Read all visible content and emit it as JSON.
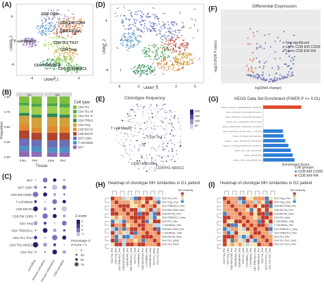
{
  "panels": {
    "A": {
      "letter": "(A)",
      "xlabel": "UMAP_1",
      "ylabel": "UMAP_2",
      "cluster_labels": [
        "GDT CD8+",
        "CD8 EM CD69",
        "CD8 EM RA",
        "T cell Mitotic",
        "CD4 Th1 Th17",
        "CD4 Treg",
        "CD4 TRBV20-1",
        "CD4 Th1 NR3C1"
      ],
      "xticks": [
        "-4",
        "0",
        "4"
      ],
      "yticks": [
        "4",
        "0",
        "-4"
      ]
    },
    "B": {
      "letter": "(B)",
      "xlabel": "Tissue",
      "ylabel": "Proportion",
      "facets": [
        "G1",
        "G2"
      ],
      "xticks": [
        "Intra",
        "Peri",
        "Intra",
        "Peri"
      ],
      "yticks": [
        "1.00",
        "0.75",
        "0.50",
        "0.25",
        "0.00"
      ],
      "legend_title": "Cell type",
      "legend": [
        "CD4 Th1",
        "CD4 Th1 NR3C1",
        "CD4 Th1 Th17",
        "CD4 TRBV20-1",
        "CD4 Treg",
        "CD8 EM CD69",
        "CD8 EM RA",
        "GDT CD8+",
        "T cell Mitotic",
        "NKT"
      ],
      "colors": [
        "#7fbf3f",
        "#4aa84e",
        "#9fcf4a",
        "#2e8b57",
        "#d2a13a",
        "#e08a2e",
        "#b0452e",
        "#6a6fb6",
        "#4e91c4",
        "#8e6bb7"
      ]
    },
    "C": {
      "letter": "(C)",
      "rows": [
        "NKT",
        "GDT CD8+",
        "CD8 EM CD69+",
        "T cell Mitotic",
        "CD8 EM RA",
        "CD8 EM CD69",
        "CD4 Treg",
        "CD4 TRBV20-1",
        "CD4 Th1 Th17",
        "CD4 Th1 NR3C1",
        "CD4 Th1"
      ],
      "cols": [
        "Cell killing",
        "Immune activation",
        "Immune exhaustion",
        "CD8 activation"
      ],
      "legend_z": "Z-score",
      "z_ticks": [
        "2",
        "1",
        "0",
        "-1"
      ],
      "legend_pct": "Percentage of Z-score > 0",
      "pct_ticks": [
        "0",
        "25",
        "50",
        "75"
      ]
    },
    "D": {
      "letter": "(D)",
      "xlabel": "UMAP_1",
      "ylabel": "UMAP_2",
      "xticks": [
        "-6",
        "-3",
        "0",
        "3",
        "6"
      ],
      "yticks": [
        "4",
        "0",
        "-4"
      ]
    },
    "E": {
      "letter": "(E)",
      "title": "Clonotype frequency",
      "labels": [
        "T cell Mitotic",
        "CD4 Th1",
        "CD4 TRBV20-1",
        "CD4 Th1 NR3C1"
      ],
      "legend_ticks": [
        "200",
        "150",
        "100",
        "50"
      ]
    },
    "F": {
      "letter": "(F)",
      "title": "Differential Expression",
      "xlabel": "log2(fold change)",
      "ylabel": "-log10 (FDR P value)",
      "legend": [
        "Not significant",
        "Up in CD8 EM CD69",
        "Up in CD8 EM RA"
      ],
      "legend_colors": [
        "#6a6fb6",
        "#2f5ea8",
        "#e65a2e"
      ]
    },
    "G": {
      "letter": "(G)",
      "title": "KEGG Data Set Enrichment (FWER P <= 0.01)",
      "xlabel": "Enrichment Score",
      "legend_title": "Cell groups",
      "legend": [
        "CD8 EM CD69",
        "CD8 EM RA"
      ],
      "legend_colors": [
        "#2f7fd6",
        "#e04a2e"
      ],
      "pathways": [
        "KEGG_PATHWAY_GENESENERGY PATHWAY",
        "KEGG_PATHWAY_PRGNAME PATHWAY",
        "KEGG_PATHWAY_SIGNALING PATHWAY",
        "KEGG_CELL_ADHESION_MOLECULES",
        "KEGG_CHEMOKINE_SIGNALING_PATHWAY",
        "KEGG_NATURAL_KILLER_CELL_CYTOTOX",
        "KEGG_ANTIGEN_PROCESSING",
        "KEGG_T_CELL_RECEPTOR_SIGNALING",
        "KEGG_CYTOKINE_RECEPTOR_INTERACT",
        "KEGG_JAK_STAT_SIGNALING",
        "KEGG_APOPTOSIS",
        "KEGG_TOLL_LIKE_RECEPTOR"
      ],
      "values": [
        0.62,
        0.0,
        0.0,
        0.0,
        0.0,
        0.32,
        0.33,
        0.36,
        0.41,
        0.45,
        0.48,
        0.51
      ],
      "groups": [
        "RA",
        "CD69",
        "CD69",
        "CD69",
        "CD69",
        "CD69",
        "CD69",
        "CD69",
        "CD69",
        "CD69",
        "CD69",
        "CD69"
      ]
    },
    "H": {
      "letter": "(H)",
      "title": "Heatmap of clonotype MH similarities in G1 patient",
      "legend": "MH similarity",
      "labels": [
        "CD4 Th1_Peri",
        "CD4 Treg_Peri",
        "CD4 TRBV20-1_Peri",
        "CD8 EM CD69_Intra",
        "CD8 EM RA_Peri",
        "CD4 TRBV20-1_Intra",
        "CD4 Th1_Intra",
        "T cell Mitotic_Peri",
        "CD8 EM CD69_Peri",
        "T cell Mitotic_Intra",
        "CD8 EM RA_Intra",
        "CD4 Th1_Intra2",
        "CD4 Th1_Peri2"
      ]
    },
    "I": {
      "letter": "(I)",
      "title": "Heatmap of clonotype MH similarities in G2 patient",
      "legend": "MH similarity",
      "labels": [
        "CD4 Treg_Peri",
        "CD4 Treg_Intra",
        "CD8 EM CD69_Peri",
        "CD8 EM RA_Peri",
        "CD8 EM RA_Intra",
        "CD4 Th1_Intra",
        "T cell Mitotic_Intra",
        "T cell Mitotic_Peri",
        "CD4 TRBV20-1_Intra",
        "CD4 TRBV20-1_Peri",
        "CD4 Th1_Peri",
        "CD4 Th1 Th17_Intra",
        "CD4 Th1 Th17_Peri"
      ]
    }
  },
  "chart_data": [
    {
      "type": "bar",
      "panel": "B",
      "categories": [
        "G1 Intra",
        "G1 Peri",
        "G2 Intra",
        "G2 Peri"
      ],
      "series": [
        {
          "name": "CD4 Th1",
          "values": [
            0.1,
            0.12,
            0.11,
            0.12
          ]
        },
        {
          "name": "CD4 Th1 NR3C1",
          "values": [
            0.05,
            0.05,
            0.05,
            0.06
          ]
        },
        {
          "name": "CD4 Th1 Th17",
          "values": [
            0.12,
            0.13,
            0.12,
            0.12
          ]
        },
        {
          "name": "CD4 TRBV20-1",
          "values": [
            0.05,
            0.05,
            0.06,
            0.05
          ]
        },
        {
          "name": "CD4 Treg",
          "values": [
            0.14,
            0.16,
            0.14,
            0.15
          ]
        },
        {
          "name": "CD8 EM CD69",
          "values": [
            0.1,
            0.09,
            0.12,
            0.1
          ]
        },
        {
          "name": "CD8 EM RA",
          "values": [
            0.14,
            0.12,
            0.13,
            0.12
          ]
        },
        {
          "name": "GDT CD8+",
          "values": [
            0.12,
            0.11,
            0.12,
            0.12
          ]
        },
        {
          "name": "T cell Mitotic",
          "values": [
            0.08,
            0.09,
            0.08,
            0.09
          ]
        },
        {
          "name": "NKT",
          "values": [
            0.1,
            0.08,
            0.07,
            0.07
          ]
        }
      ],
      "ylabel": "Proportion",
      "xlabel": "Tissue",
      "ylim": [
        0,
        1
      ]
    },
    {
      "type": "bar",
      "panel": "G",
      "orientation": "horizontal",
      "xlabel": "Enrichment Score"
    }
  ]
}
